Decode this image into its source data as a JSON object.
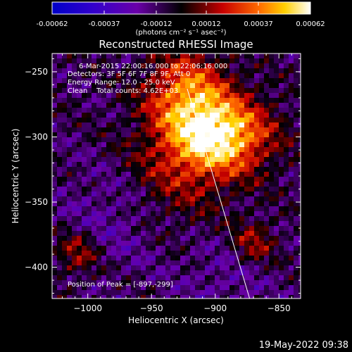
{
  "chart_data": {
    "type": "heatmap",
    "title": "Reconstructed RHESSI Image",
    "xlabel": "Heliocentric X (arcsec)",
    "ylabel": "Heliocentric Y (arcsec)",
    "xlim": [
      -1028,
      -833
    ],
    "ylim": [
      -424,
      -236
    ],
    "x_ticks": [
      -1000,
      -950,
      -900,
      -850
    ],
    "x_tick_labels": [
      "−1000",
      "−950",
      "−900",
      "−850"
    ],
    "y_ticks": [
      -250,
      -300,
      -350,
      -400
    ],
    "y_tick_labels": [
      "−250",
      "−300",
      "−350",
      "−400"
    ],
    "colorbar": {
      "ticks": [
        -0.00062,
        -0.00037,
        -0.00012,
        0.00012,
        0.00037,
        0.00062
      ],
      "tick_labels": [
        "-0.00062",
        "-0.00037",
        "-0.00012",
        "0.00012",
        "0.00037",
        "0.00062"
      ],
      "range": [
        -0.00062,
        0.00062
      ],
      "units_label": "(photons cm⁻² s⁻¹ asec⁻²)",
      "colors": [
        "#0000c8",
        "#3300cc",
        "#6a00a8",
        "#000000",
        "#c80000",
        "#ff6a00",
        "#ffd000",
        "#ffffff"
      ]
    },
    "peak": {
      "x": -897,
      "y": -299
    },
    "limb_line": [
      [
        -922,
        -263
      ],
      [
        -873,
        -424
      ]
    ],
    "annotations": {
      "time": "6-Mar-2015 22:00:16.000 to 22:06:16.000",
      "detectors": "Detectors: 3F 5F 6F 7F 8F 9F, Att 0",
      "energy": "Energy Range: 12.0 - 25.0 keV",
      "clean": "Clean    Total counts: 4.62E+03",
      "peak": "Position of Peak = [-897,-299]"
    },
    "timestamp": "19-May-2022 09:38",
    "grid": false
  }
}
